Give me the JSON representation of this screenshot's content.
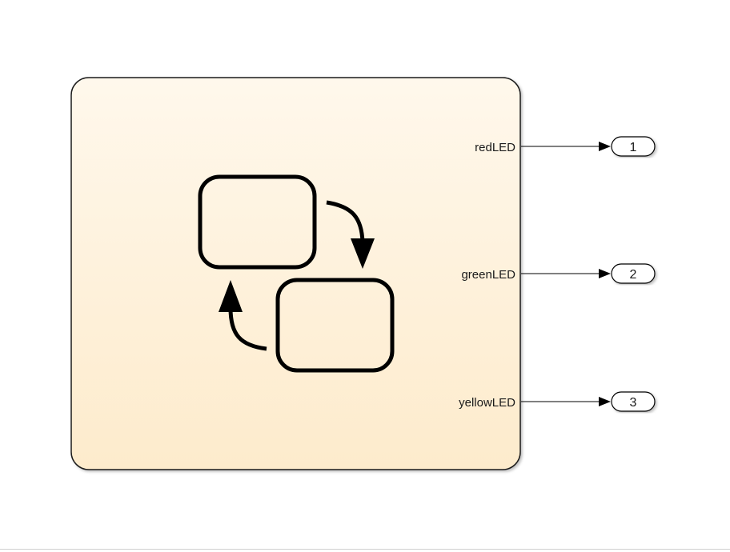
{
  "chart_block": {
    "icon": "stateflow-chart-icon",
    "fill_top": "#fff8ec",
    "fill_bottom": "#fdebcc",
    "border_color": "#1a1a1a",
    "outputs": [
      {
        "label": "redLED",
        "port": "1"
      },
      {
        "label": "greenLED",
        "port": "2"
      },
      {
        "label": "yellowLED",
        "port": "3"
      }
    ]
  },
  "line_color": "#000000"
}
